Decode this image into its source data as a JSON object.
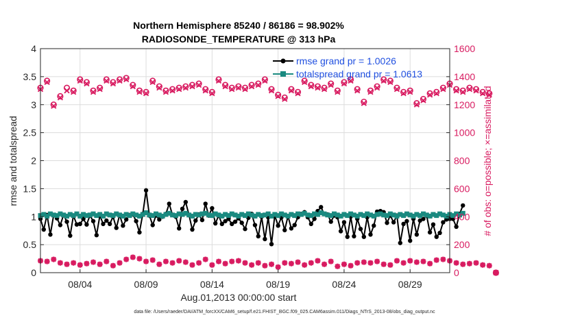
{
  "chart_data": {
    "type": "line",
    "title_line1": "Northern Hemisphere 85240 / 86186 = 98.902%",
    "title_line2": "RADIOSONDE_TEMPERATURE @ 313 hPa",
    "xlabel": "Aug.01,2013 00:00:00 start",
    "ylabel_left": "rmse and totalspread",
    "ylabel_right": "# of obs: o=possible; ×=assimilated",
    "footer": "data file: /Users/raeder/DAI/ATM_forcXX/CAM6_setup/f.e21.FHIST_BGC.f09_025.CAM6assim.011/Diags_NTrS_2013-08/obs_diag_output.nc",
    "xlim": [
      1.0,
      32.0
    ],
    "ylim_left": [
      0,
      4
    ],
    "ylim_right": [
      0,
      1600
    ],
    "x_ticks": [
      4,
      9,
      14,
      19,
      24,
      29
    ],
    "x_tick_labels": [
      "08/04",
      "08/09",
      "08/14",
      "08/19",
      "08/24",
      "08/29"
    ],
    "left_ticks": [
      "0",
      "0.5",
      "1",
      "1.5",
      "2",
      "2.5",
      "3",
      "3.5",
      "4"
    ],
    "right_ticks": [
      "0",
      "200",
      "400",
      "600",
      "800",
      "1000",
      "1200",
      "1400",
      "1600"
    ],
    "colors": {
      "rmse": "#000000",
      "totalspread": "#1a8a80",
      "obs": "#d81b60",
      "legend_text": "#1f4fe0",
      "axis": "#262626"
    },
    "series": [
      {
        "name": "rmse grand pr = 1.0026",
        "key": "rmse",
        "axis": "left",
        "marker": "circle",
        "x0": 1.0,
        "dx": 0.25,
        "values": [
          0.96,
          0.77,
          1.03,
          0.68,
          1.03,
          0.97,
          0.85,
          1.03,
          0.91,
          0.66,
          1.02,
          0.86,
          0.87,
          0.96,
          0.86,
          1.02,
          0.92,
          0.67,
          1.02,
          0.87,
          0.93,
          0.87,
          1.0,
          0.8,
          1.03,
          0.84,
          0.95,
          1.03,
          1.04,
          0.92,
          0.72,
          1.05,
          1.47,
          1.02,
          0.85,
          1.02,
          0.95,
          1.0,
          1.05,
          1.23,
          1.03,
          1.0,
          0.79,
          1.14,
          1.26,
          1.03,
          0.77,
          0.93,
          1.04,
          0.94,
          1.23,
          1.02,
          1.15,
          0.88,
          1.02,
          0.87,
          0.92,
          0.96,
          0.87,
          0.91,
          0.97,
          0.89,
          0.78,
          0.98,
          1.05,
          0.85,
          0.65,
          1.0,
          0.6,
          0.99,
          0.51,
          1.02,
          0.84,
          0.99,
          0.76,
          1.01,
          0.79,
          0.85,
          0.99,
          1.05,
          1.08,
          0.99,
          0.87,
          0.96,
          1.1,
          1.17,
          1.05,
          1.04,
          0.91,
          1.02,
          0.99,
          0.74,
          0.9,
          0.64,
          1.0,
          0.65,
          0.96,
          0.78,
          0.64,
          0.99,
          0.68,
          0.84,
          1.09,
          1.1,
          1.08,
          0.89,
          1.02,
          0.9,
          1.02,
          0.53,
          0.87,
          0.92,
          0.57,
          0.96,
          0.68,
          0.93,
          0.96,
          1.02,
          0.72,
          0.86,
          0.64,
          0.71,
          0.9,
          0.95,
          0.96,
          0.96,
          0.82,
          1.05,
          1.2
        ]
      },
      {
        "name": "totalspread grand pr = 1.0613",
        "key": "totalspread",
        "axis": "left",
        "marker": "square",
        "x0": 1.0,
        "dx": 0.25,
        "values": [
          1.02,
          1.04,
          1.01,
          1.05,
          1.03,
          1.02,
          1.05,
          1.03,
          1.01,
          1.04,
          1.02,
          1.05,
          1.01,
          1.04,
          1.02,
          1.03,
          1.05,
          1.02,
          1.04,
          1.01,
          1.05,
          1.03,
          1.02,
          1.05,
          1.03,
          1.01,
          1.04,
          1.02,
          1.05,
          1.03,
          1.01,
          1.04,
          1.07,
          1.03,
          1.02,
          1.05,
          1.03,
          1.01,
          1.04,
          1.06,
          1.03,
          1.02,
          1.05,
          1.04,
          1.06,
          1.03,
          1.01,
          1.04,
          1.03,
          1.05,
          1.06,
          1.03,
          1.02,
          1.05,
          1.03,
          1.01,
          1.04,
          1.02,
          1.05,
          1.03,
          1.01,
          1.04,
          1.02,
          1.05,
          1.03,
          1.01,
          1.04,
          1.02,
          1.03,
          1.05,
          1.01,
          1.04,
          1.02,
          1.05,
          1.03,
          1.01,
          1.04,
          1.02,
          1.05,
          1.04,
          1.06,
          1.03,
          1.02,
          1.05,
          1.04,
          1.07,
          1.05,
          1.03,
          1.02,
          1.05,
          1.03,
          1.01,
          1.04,
          1.02,
          1.05,
          1.03,
          1.01,
          1.04,
          1.02,
          1.05,
          1.03,
          1.01,
          1.04,
          1.05,
          1.03,
          1.02,
          1.05,
          1.03,
          1.01,
          1.04,
          1.02,
          1.05,
          1.03,
          1.01,
          1.04,
          1.02,
          1.05,
          1.03,
          1.01,
          1.04,
          1.02,
          1.05,
          1.03,
          1.01,
          1.04,
          1.02,
          1.05,
          1.03,
          1.06
        ]
      },
      {
        "name": "# of obs possible",
        "key": "obs_possible",
        "axis": "right",
        "marker": "o",
        "x0": 1.0,
        "dx": 0.5,
        "values": [
          1320,
          1370,
          1200,
          1260,
          1320,
          1300,
          1380,
          1360,
          1300,
          1320,
          1380,
          1360,
          1380,
          1390,
          1340,
          1300,
          1290,
          1370,
          1330,
          1300,
          1310,
          1320,
          1330,
          1340,
          1350,
          1310,
          1290,
          1380,
          1340,
          1320,
          1330,
          1320,
          1340,
          1350,
          1380,
          1310,
          1270,
          1250,
          1310,
          1290,
          1370,
          1340,
          1330,
          1320,
          1350,
          1300,
          1360,
          1380,
          1310,
          1220,
          1300,
          1330,
          1380,
          1370,
          1320,
          1290,
          1300,
          1210,
          1240,
          1280,
          1290,
          1320,
          1350,
          1310,
          1300,
          1320,
          1310,
          1290,
          1280,
          0
        ]
      },
      {
        "name": "# of obs assimilated",
        "key": "obs_assimilated",
        "axis": "right",
        "marker": "x",
        "x0": 1.0,
        "dx": 0.5,
        "values": [
          1310,
          1360,
          1190,
          1250,
          1300,
          1290,
          1370,
          1350,
          1290,
          1310,
          1370,
          1350,
          1370,
          1380,
          1330,
          1290,
          1280,
          1360,
          1320,
          1290,
          1300,
          1310,
          1320,
          1330,
          1340,
          1300,
          1280,
          1370,
          1330,
          1310,
          1320,
          1310,
          1330,
          1340,
          1370,
          1300,
          1260,
          1240,
          1300,
          1280,
          1360,
          1330,
          1320,
          1310,
          1340,
          1290,
          1350,
          1370,
          1300,
          1210,
          1290,
          1320,
          1370,
          1360,
          1310,
          1280,
          1290,
          1200,
          1230,
          1270,
          1280,
          1310,
          1340,
          1300,
          1290,
          1310,
          1300,
          1280,
          1270,
          0
        ]
      },
      {
        "name": "# of obs (lower level)",
        "key": "obs_low",
        "axis": "right",
        "marker": "plus",
        "x0": 1.0,
        "dx": 0.5,
        "values": [
          85,
          80,
          95,
          70,
          60,
          70,
          55,
          65,
          75,
          60,
          80,
          50,
          70,
          95,
          110,
          100,
          80,
          90,
          60,
          80,
          70,
          85,
          75,
          55,
          70,
          95,
          55,
          80,
          65,
          80,
          85,
          70,
          55,
          70,
          50,
          60,
          40,
          70,
          65,
          75,
          55,
          70,
          85,
          60,
          80,
          45,
          60,
          50,
          70,
          75,
          70,
          80,
          60,
          55,
          85,
          70,
          85,
          75,
          80,
          65,
          90,
          95,
          85,
          70,
          60,
          65,
          70,
          55,
          50,
          0
        ]
      }
    ]
  }
}
